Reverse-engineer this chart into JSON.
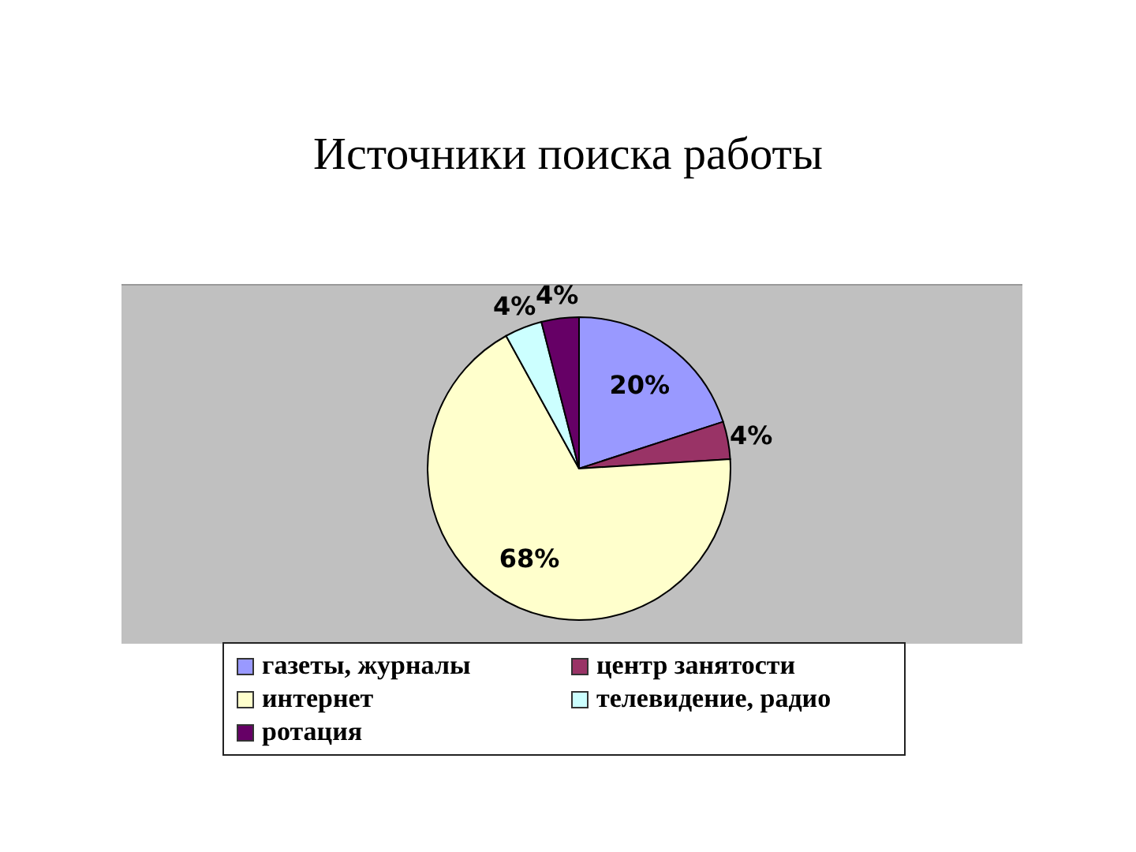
{
  "chart_data": {
    "type": "pie",
    "title": "Источники поиска работы",
    "categories": [
      "газеты, журналы",
      "центр занятости",
      "интернет",
      "телевидение, радио",
      "ротация"
    ],
    "values": [
      20,
      4,
      68,
      4,
      4
    ],
    "colors": [
      "#9999ff",
      "#993366",
      "#ffffcc",
      "#ccffff",
      "#660066"
    ],
    "value_labels": [
      "20%",
      "4%",
      "68%",
      "4%",
      "4%"
    ],
    "legend": "bottom"
  }
}
